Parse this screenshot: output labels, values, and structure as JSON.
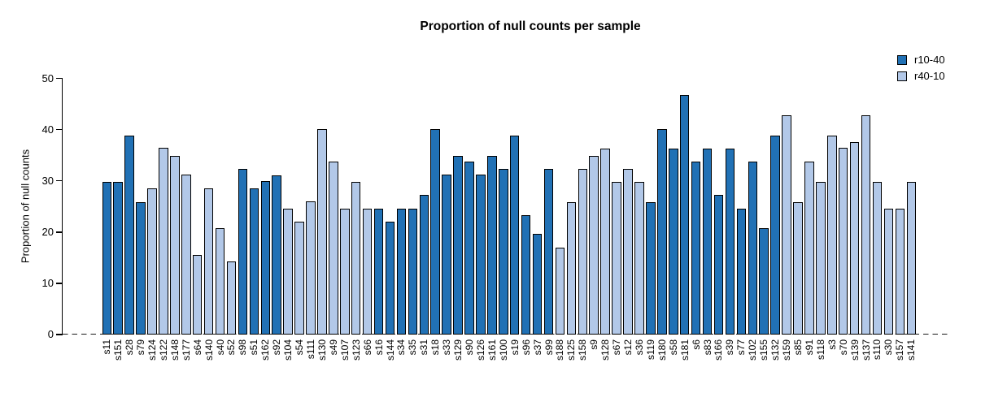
{
  "title": "Proportion of null counts per sample",
  "legend": {
    "position": "top-right",
    "items": [
      {
        "label": "r10-40",
        "color": "#2171B5"
      },
      {
        "label": "r40-10",
        "color": "#B2C8E8"
      }
    ]
  },
  "chart_data": {
    "type": "bar",
    "title": "Proportion of null counts per sample",
    "xlabel": "",
    "ylabel": "Proportion of null counts",
    "ylim": [
      0,
      50
    ],
    "yticks": [
      0,
      10,
      20,
      30,
      40,
      50
    ],
    "grid": false,
    "legend_position": "top-right",
    "baseline_style": "dashed",
    "bar_border_color": "#000000",
    "series": [
      {
        "name": "r10-40",
        "color": "#2171B5"
      },
      {
        "name": "r40-10",
        "color": "#B2C8E8"
      }
    ],
    "categories": [
      "s11",
      "s151",
      "s28",
      "s79",
      "s124",
      "s122",
      "s148",
      "s177",
      "s64",
      "s140",
      "s40",
      "s52",
      "s98",
      "s51",
      "s162",
      "s92",
      "s104",
      "s54",
      "s111",
      "s130",
      "s49",
      "s107",
      "s123",
      "s66",
      "s16",
      "s144",
      "s34",
      "s35",
      "s31",
      "s18",
      "s33",
      "s129",
      "s90",
      "s126",
      "s161",
      "s100",
      "s19",
      "s96",
      "s37",
      "s99",
      "s188",
      "s125",
      "s158",
      "s9",
      "s128",
      "s67",
      "s12",
      "s36",
      "s119",
      "s180",
      "s58",
      "s181",
      "s6",
      "s83",
      "s166",
      "s39",
      "s77",
      "s102",
      "s155",
      "s132",
      "s159",
      "s85",
      "s91",
      "s118",
      "s3",
      "s70",
      "s139",
      "s137",
      "s110",
      "s30",
      "s157",
      "s141"
    ],
    "values": [
      29.8,
      29.8,
      38.9,
      25.9,
      28.5,
      36.4,
      34.9,
      31.2,
      15.6,
      28.5,
      20.8,
      14.3,
      32.4,
      28.5,
      29.9,
      31.1,
      24.6,
      22.1,
      26.0,
      40.1,
      33.7,
      24.5,
      29.8,
      24.5,
      24.5,
      22.1,
      24.5,
      24.6,
      27.3,
      40.1,
      31.2,
      34.9,
      33.7,
      31.2,
      34.9,
      32.4,
      38.9,
      23.3,
      19.6,
      32.4,
      16.9,
      25.9,
      32.4,
      34.9,
      36.3,
      29.8,
      32.4,
      29.8,
      25.9,
      40.1,
      36.3,
      46.7,
      33.7,
      36.3,
      27.3,
      36.3,
      24.6,
      33.7,
      20.8,
      38.9,
      42.8,
      25.9,
      33.7,
      29.8,
      38.9,
      36.4,
      37.6,
      42.8,
      29.8,
      24.5,
      24.5,
      29.8
    ],
    "bar_series_index": [
      0,
      0,
      0,
      0,
      1,
      1,
      1,
      1,
      1,
      1,
      1,
      1,
      0,
      0,
      0,
      0,
      1,
      1,
      1,
      1,
      1,
      1,
      1,
      1,
      0,
      0,
      0,
      0,
      0,
      0,
      0,
      0,
      0,
      0,
      0,
      0,
      0,
      0,
      0,
      0,
      1,
      1,
      1,
      1,
      1,
      1,
      1,
      1,
      0,
      0,
      0,
      0,
      0,
      0,
      0,
      0,
      0,
      0,
      0,
      0,
      1,
      1,
      1,
      1,
      1,
      1,
      1,
      1,
      1,
      1,
      1,
      1
    ]
  }
}
